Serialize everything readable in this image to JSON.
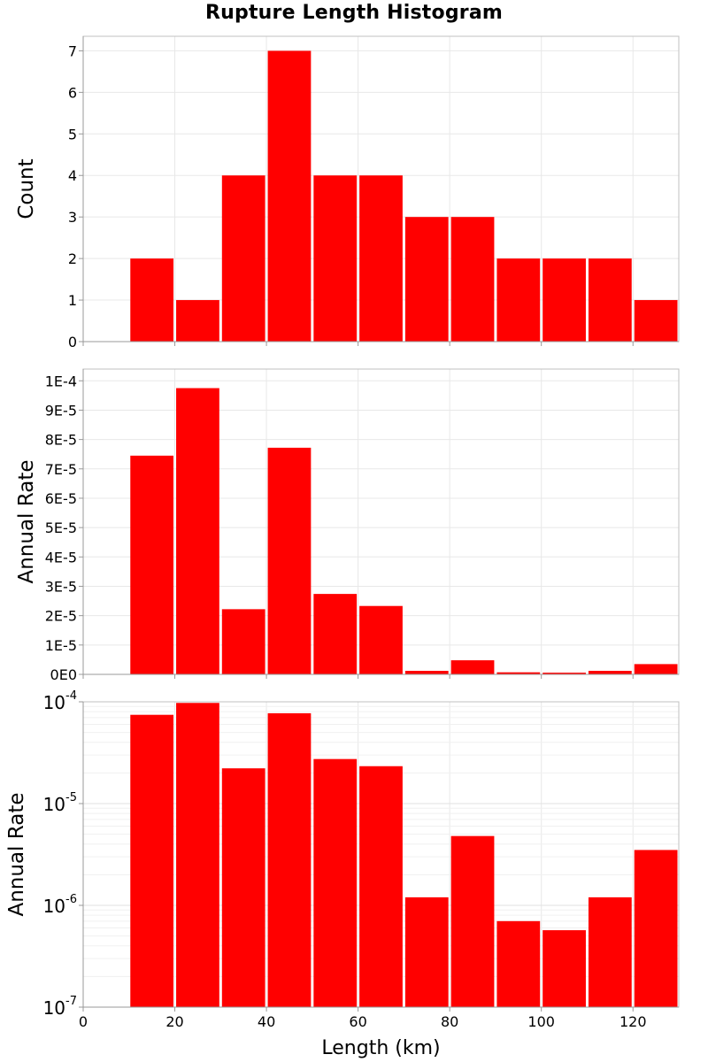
{
  "chart_data": {
    "title": "Rupture Length Histogram",
    "type": "bar",
    "shared_x": {
      "label": "Length (km)",
      "range": [
        0,
        130
      ],
      "ticks": [
        0,
        20,
        40,
        60,
        80,
        100,
        120
      ],
      "tick_labels": [
        "0",
        "20",
        "40",
        "60",
        "80",
        "100",
        "120"
      ]
    },
    "bin_width": 10,
    "bin_centers": [
      15,
      25,
      35,
      45,
      55,
      65,
      75,
      85,
      95,
      105,
      115,
      125
    ],
    "bar_color": "#ff0000",
    "grid": true,
    "panels": [
      {
        "id": "count",
        "ylabel": "Count",
        "yscale": "linear",
        "ylim": [
          0,
          7.35
        ],
        "y_ticks": [
          0,
          1,
          2,
          3,
          4,
          5,
          6,
          7
        ],
        "y_tick_labels": [
          "0",
          "1",
          "2",
          "3",
          "4",
          "5",
          "6",
          "7"
        ],
        "values": [
          2,
          1,
          4,
          7,
          4,
          4,
          3,
          3,
          2,
          2,
          2,
          1
        ]
      },
      {
        "id": "rate-linear",
        "ylabel": "Annual Rate",
        "yscale": "linear",
        "ylim": [
          0,
          0.000104
        ],
        "y_ticks": [
          0,
          1e-05,
          2e-05,
          3e-05,
          4e-05,
          5e-05,
          6e-05,
          7e-05,
          8e-05,
          9e-05,
          0.0001
        ],
        "y_tick_labels": [
          "0E0",
          "1E-5",
          "2E-5",
          "3E-5",
          "4E-5",
          "5E-5",
          "6E-5",
          "7E-5",
          "8E-5",
          "9E-5",
          "1E-4"
        ],
        "values": [
          7.45e-05,
          9.75e-05,
          2.22e-05,
          7.72e-05,
          2.74e-05,
          2.33e-05,
          1.2e-06,
          4.8e-06,
          7e-07,
          5.7e-07,
          1.2e-06,
          3.5e-06
        ]
      },
      {
        "id": "rate-log",
        "ylabel": "Annual Rate",
        "yscale": "log",
        "ylim": [
          1e-07,
          0.0001
        ],
        "y_ticks": [
          1e-07,
          1e-06,
          1e-05,
          0.0001
        ],
        "y_tick_labels": [
          {
            "base": "10",
            "exp": "-7"
          },
          {
            "base": "10",
            "exp": "-6"
          },
          {
            "base": "10",
            "exp": "-5"
          },
          {
            "base": "10",
            "exp": "-4"
          }
        ],
        "values": [
          7.45e-05,
          9.75e-05,
          2.22e-05,
          7.72e-05,
          2.74e-05,
          2.33e-05,
          1.2e-06,
          4.8e-06,
          7e-07,
          5.7e-07,
          1.2e-06,
          3.5e-06
        ]
      }
    ]
  }
}
